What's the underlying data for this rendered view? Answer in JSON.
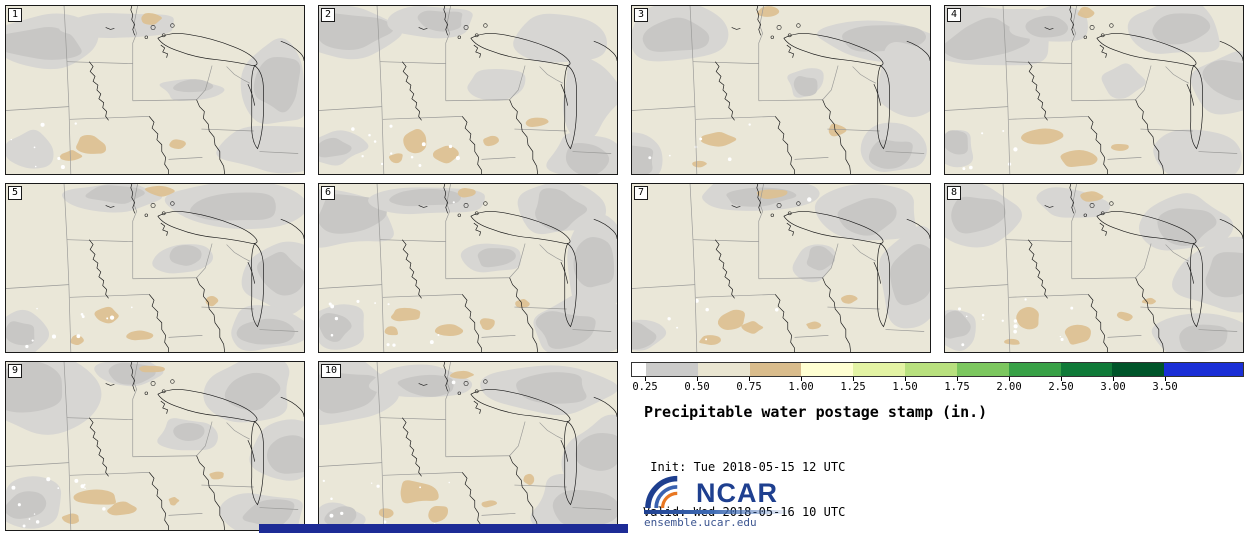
{
  "panels": [
    {
      "id": "1"
    },
    {
      "id": "2"
    },
    {
      "id": "3"
    },
    {
      "id": "4"
    },
    {
      "id": "5"
    },
    {
      "id": "6"
    },
    {
      "id": "7"
    },
    {
      "id": "8"
    },
    {
      "id": "9"
    },
    {
      "id": "10"
    }
  ],
  "legend": {
    "title": "Precipitable water postage stamp (in.)",
    "init_line": " Init: Tue 2018-05-15 12 UTC",
    "valid_line": "Valid: Wed 2018-05-16 10 UTC",
    "colorbar": {
      "tick_labels": [
        "0.25",
        "0.50",
        "0.75",
        "1.00",
        "1.25",
        "1.50",
        "1.75",
        "2.00",
        "2.50",
        "3.00",
        "3.50"
      ],
      "segment_colors": [
        "#ffffff",
        "#cbcbca",
        "#e9e5d1",
        "#d9bc8c",
        "#ffffd2",
        "#e3f3a4",
        "#b8e07e",
        "#7cc75f",
        "#38a147",
        "#0f7a38",
        "#00552a",
        "#1a2fd6"
      ]
    }
  },
  "branding": {
    "org": "NCAR",
    "site": "ensemble.ucar.edu"
  },
  "map_colors": {
    "background": "#eae7d8",
    "light_gray": "#d7d6d3",
    "gray": "#c8c7c5",
    "tan": "#dcc091",
    "border": "#9a9a98",
    "water": "#1a1a1a"
  }
}
